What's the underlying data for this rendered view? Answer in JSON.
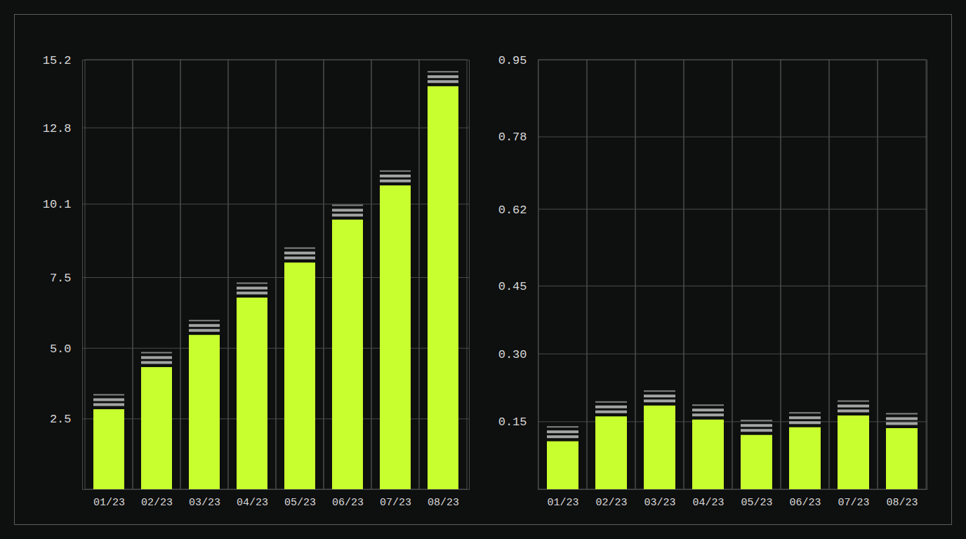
{
  "chart_data": [
    {
      "type": "bar",
      "categories": [
        "01/23",
        "02/23",
        "03/23",
        "04/23",
        "05/23",
        "06/23",
        "07/23",
        "08/23"
      ],
      "values": [
        2.83,
        4.32,
        5.46,
        6.78,
        8.02,
        9.54,
        10.75,
        14.26
      ],
      "color": "#c8ff2e",
      "ylim": [
        0,
        15.2
      ],
      "yticks": [
        2.5,
        {
          "value": 5,
          "label": "5.0"
        },
        7.5,
        10.1,
        12.8,
        15.2
      ],
      "grid": true
    },
    {
      "type": "bar",
      "categories": [
        "01/23",
        "02/23",
        "03/23",
        "04/23",
        "05/23",
        "06/23",
        "07/23",
        "08/23"
      ],
      "values": [
        0.106,
        0.161,
        0.185,
        0.154,
        0.12,
        0.137,
        0.163,
        0.135
      ],
      "color": "#c8ff2e",
      "ylim": [
        0,
        0.95
      ],
      "yticks": [
        0.15,
        {
          "value": 0.3,
          "label": "0.30"
        },
        0.45,
        0.62,
        0.78,
        0.95
      ],
      "grid": true
    }
  ]
}
